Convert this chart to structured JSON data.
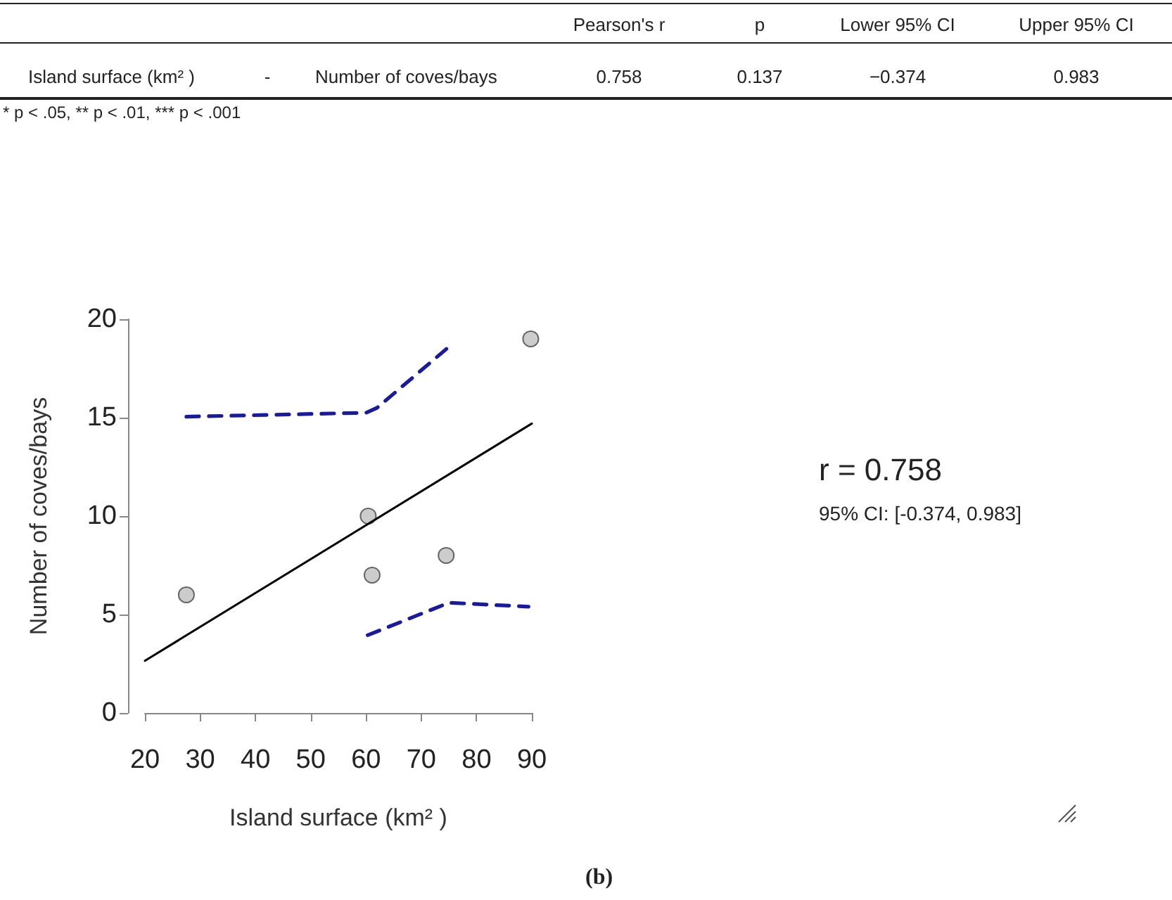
{
  "chart_data": [
    {
      "type": "other",
      "annotations": [
        "Pearson's r",
        "p",
        "Lower 95% CI",
        "Upper 95% CI",
        "Island surface (km² )",
        "-",
        "Number of coves/bays",
        "0.758",
        "0.137",
        "−0.374",
        "0.983",
        "* p < .05, ** p < .01, *** p < .001"
      ]
    },
    {
      "type": "scatter",
      "xlabel": "Island surface (km² )",
      "ylabel": "Number of coves/bays",
      "xlim": [
        20,
        90
      ],
      "ylim": [
        0,
        20
      ],
      "xticks": [
        20,
        30,
        40,
        50,
        60,
        70,
        80,
        90
      ],
      "yticks": [
        0,
        5,
        10,
        15,
        20
      ],
      "grid": false,
      "marker": "circle",
      "annotations": [
        "r = 0.758",
        "95% CI: [-0.374, 0.983]",
        "(b)"
      ],
      "series": [
        {
          "type": "line",
          "color": "#000000",
          "line_style": "solid",
          "marker": "none",
          "x": [
            20,
            90
          ],
          "values": [
            2.65,
            14.7
          ]
        },
        {
          "type": "line",
          "color": "#1a1aa0",
          "line_style": "dashed",
          "marker": "none",
          "x": [
            27.5,
            60,
            62,
            75
          ],
          "values": [
            15.05,
            15.25,
            15.5,
            18.6
          ]
        },
        {
          "type": "line",
          "color": "#1a1aa0",
          "line_style": "dashed",
          "marker": "none",
          "x": [
            60.3,
            75,
            89.4
          ],
          "values": [
            3.95,
            5.6,
            5.4
          ]
        },
        {
          "color": "#bfbfbf",
          "x": [
            27.5,
            60.4,
            61.1,
            74.5,
            89.8
          ],
          "values": [
            6,
            10,
            7,
            8,
            19
          ]
        }
      ]
    }
  ]
}
